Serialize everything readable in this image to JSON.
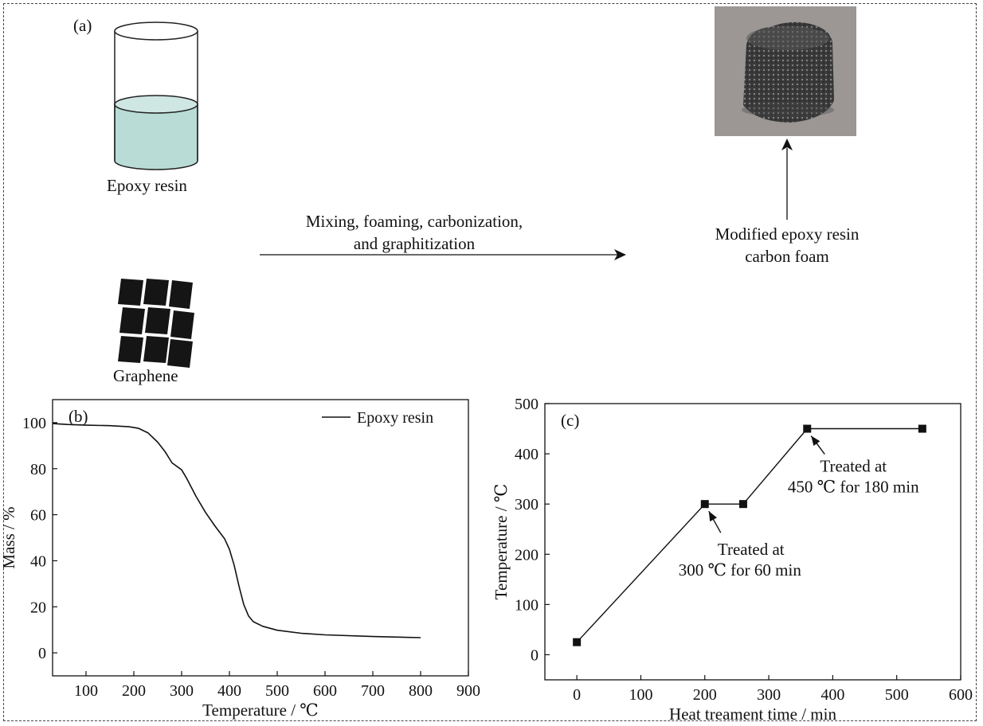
{
  "panel_a": {
    "label": "(a)",
    "beaker_label": "Epoxy resin",
    "graphene_label": "Graphene",
    "process_line1": "Mixing, foaming, carbonization,",
    "process_line2": "and graphitization",
    "product_line1": "Modified epoxy resin",
    "product_line2": "carbon foam",
    "colors": {
      "resin": "#b9dcd6",
      "graphene": "#151515",
      "photo_bg": "#9c9694",
      "foam": "#3c3c3c"
    }
  },
  "chart_data": [
    {
      "panel": "(b)",
      "type": "line",
      "xlabel": "Temperature / ℃",
      "ylabel": "Mass / %",
      "xlim": [
        30,
        900
      ],
      "ylim": [
        -10,
        110
      ],
      "xticks": [
        100,
        200,
        300,
        400,
        500,
        600,
        700,
        800,
        900
      ],
      "yticks": [
        0,
        20,
        40,
        60,
        80,
        100
      ],
      "legend": "top-right",
      "series": [
        {
          "name": "Epoxy resin",
          "x": [
            30,
            60,
            100,
            150,
            190,
            210,
            230,
            250,
            265,
            280,
            300,
            310,
            330,
            350,
            370,
            390,
            400,
            410,
            420,
            430,
            440,
            450,
            470,
            500,
            550,
            600,
            700,
            800
          ],
          "y": [
            99.6,
            99.2,
            98.9,
            98.7,
            98.2,
            97.5,
            95.5,
            91.5,
            87.5,
            82.5,
            79.5,
            76,
            68,
            61,
            55,
            49.5,
            45,
            38,
            29,
            21,
            16,
            13.5,
            11.5,
            9.8,
            8.5,
            7.8,
            7.1,
            6.6
          ]
        }
      ]
    },
    {
      "panel": "(c)",
      "type": "line",
      "xlabel": "Heat treament time / min",
      "ylabel": "Temperature / ℃",
      "xlim": [
        -50,
        600
      ],
      "ylim": [
        -50,
        500
      ],
      "xticks": [
        0,
        100,
        200,
        300,
        400,
        500,
        600
      ],
      "yticks": [
        0,
        100,
        200,
        300,
        400,
        500
      ],
      "series": [
        {
          "x": [
            0,
            200,
            260,
            360,
            540
          ],
          "y": [
            25,
            300,
            300,
            450,
            450
          ]
        }
      ],
      "annotations": [
        {
          "line1": "Treated at",
          "line2": "300 ℃ for 60 min",
          "target": [
            200,
            300
          ]
        },
        {
          "line1": "Treated at",
          "line2": "450 ℃ for 180 min",
          "target": [
            360,
            450
          ]
        }
      ]
    }
  ]
}
